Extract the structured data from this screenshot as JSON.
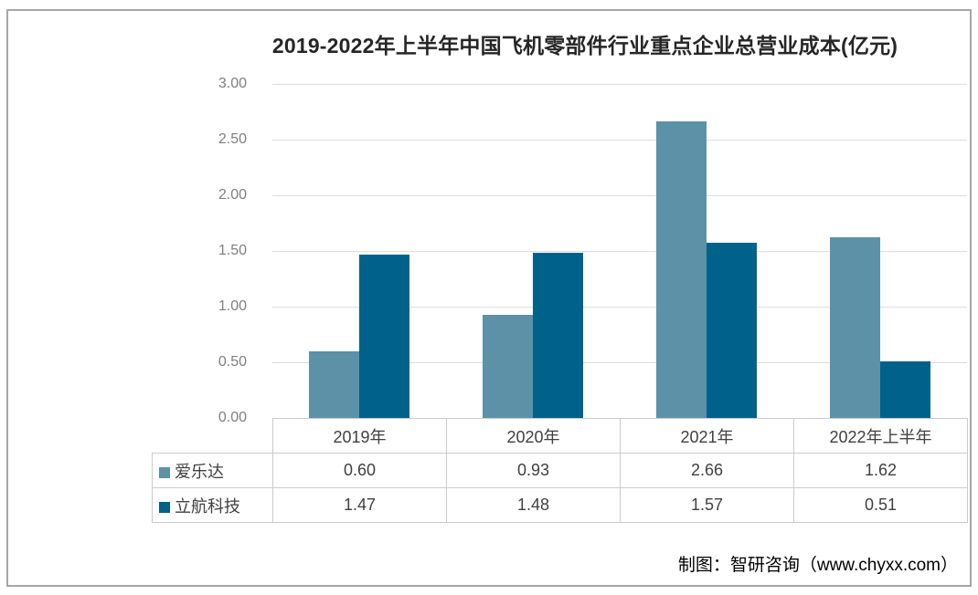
{
  "title": "2019-2022年上半年中国飞机零部件行业重点企业总营业成本(亿元)",
  "chart_data": {
    "type": "bar",
    "categories": [
      "2019年",
      "2020年",
      "2021年",
      "2022年上半年"
    ],
    "series": [
      {
        "name": "爱乐达",
        "color": "#5C91A8",
        "values": [
          0.6,
          0.93,
          2.66,
          1.62
        ]
      },
      {
        "name": "立航科技",
        "color": "#00628A",
        "values": [
          1.47,
          1.48,
          1.57,
          0.51
        ]
      }
    ],
    "title": "2019-2022年上半年中国飞机零部件行业重点企业总营业成本(亿元)",
    "xlabel": "",
    "ylabel": "",
    "ylim": [
      0,
      3.0
    ],
    "ytick_step": 0.5,
    "yticks": [
      "3.00",
      "2.50",
      "2.00",
      "1.50",
      "1.00",
      "0.50",
      "0.00"
    ],
    "grid": true,
    "legend_position": "table-left"
  },
  "table": {
    "columns": [
      "2019年",
      "2020年",
      "2021年",
      "2022年上半年"
    ],
    "row_headers": [
      "爱乐达",
      "立航科技"
    ],
    "rows": [
      [
        "0.60",
        "0.93",
        "2.66",
        "1.62"
      ],
      [
        "1.47",
        "1.48",
        "1.57",
        "0.51"
      ]
    ]
  },
  "footer": {
    "credit": "制图：智研咨询（www.chyxx.com）"
  },
  "colors": {
    "series_1": "#5C91A8",
    "series_2": "#00628A",
    "grid": "#DCDCDC",
    "frame_border": "#A6A6A6",
    "table_border": "#CBCBCB",
    "title_text": "#262626",
    "axis_text": "#7F7F7F",
    "table_text": "#404040",
    "footer_text": "#000000"
  }
}
